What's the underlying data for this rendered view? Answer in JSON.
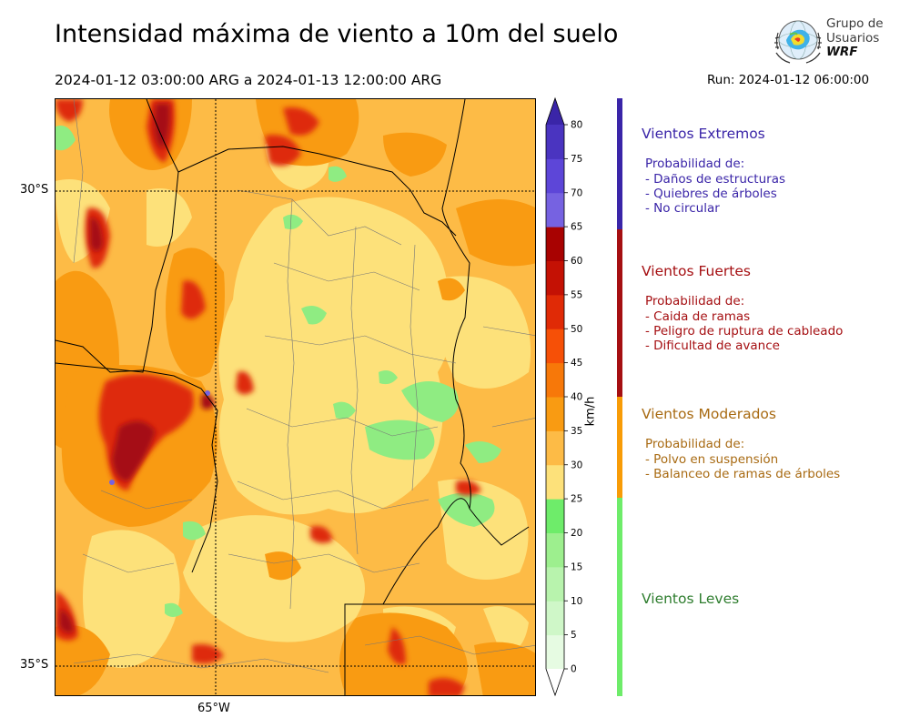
{
  "header": {
    "title": "Intensidad máxima de viento a 10m del suelo",
    "period": "2024-01-12 03:00:00 ARG  a  2024-01-13 12:00:00 ARG",
    "run": "Run: 2024-01-12 06:00:00"
  },
  "logo": {
    "line1": "Grupo de",
    "line2": "Usuarios",
    "line3": "WRF",
    "icon": "globe-logo-icon"
  },
  "map": {
    "lat_labels": [
      "30°S",
      "35°S"
    ],
    "lon_labels": [
      "65°W"
    ],
    "gridlines": "dotted",
    "field": "wind-speed-shading",
    "colors": {
      "light_green": "#8fec82",
      "yellow": "#fde17a",
      "light_orange": "#fdbb46",
      "orange": "#f99b12",
      "dark_orange": "#f26b0c",
      "red": "#de2b10",
      "dark_red": "#a50f12"
    }
  },
  "colorbar": {
    "units": "km/h",
    "ticks": [
      "0",
      "5",
      "10",
      "15",
      "20",
      "25",
      "30",
      "35",
      "40",
      "45",
      "50",
      "55",
      "60",
      "65",
      "70",
      "75",
      "80"
    ],
    "levels": [
      0,
      5,
      10,
      15,
      20,
      25,
      30,
      35,
      40,
      45,
      50,
      55,
      60,
      65,
      70,
      75,
      80
    ],
    "colors": [
      "#e6fbe2",
      "#cff7c8",
      "#b8f3ad",
      "#9def8e",
      "#6eec6a",
      "#fde17a",
      "#fdbb46",
      "#f99b12",
      "#f77809",
      "#f65007",
      "#e02a06",
      "#c41104",
      "#a80201",
      "#7662e1",
      "#5d46d8",
      "#4a34c0",
      "#3a25a8"
    ],
    "extend": "both"
  },
  "categories": [
    {
      "key": "extremos",
      "title": "Vientos Extremos",
      "prob_label": "Probabilidad de:",
      "effects": [
        "- Daños de estructuras",
        "- Quiebres de árboles",
        "- No circular"
      ],
      "color": "#3a25a8",
      "range_kmh": [
        65,
        80
      ]
    },
    {
      "key": "fuertes",
      "title": "Vientos Fuertes",
      "prob_label": "Probabilidad de:",
      "effects": [
        "- Caida de ramas",
        "- Peligro de ruptura de cableado",
        "- Dificultad de avance"
      ],
      "color": "#a50f12",
      "range_kmh": [
        40,
        65
      ]
    },
    {
      "key": "moderados",
      "title": "Vientos Moderados",
      "prob_label": "Probabilidad de:",
      "effects": [
        "- Polvo en suspensión",
        "- Balanceo de ramas de árboles"
      ],
      "color": "#a86a12",
      "range_kmh": [
        25,
        40
      ]
    },
    {
      "key": "leves",
      "title": "Vientos Leves",
      "prob_label": "",
      "effects": [],
      "color": "#2e7d2e",
      "range_kmh": [
        0,
        25
      ]
    }
  ]
}
